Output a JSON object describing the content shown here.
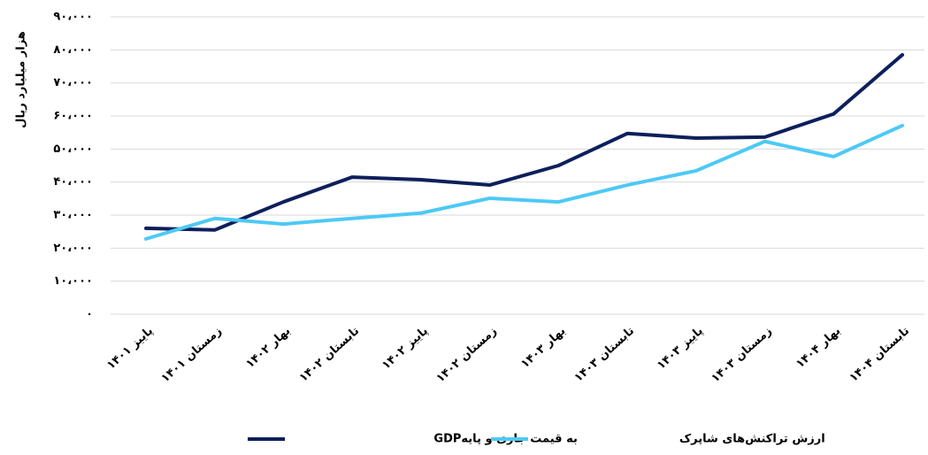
{
  "chart_data": {
    "type": "line",
    "y_label": "هزار میلیارد ریال",
    "categories": [
      "پاییز ۱۴۰۱",
      "زمستان ۱۴۰۱",
      "بهار ۱۴۰۲",
      "تابستان ۱۴۰۲",
      "پاییز ۱۴۰۲",
      "زمستان ۱۴۰۲",
      "بهار ۱۴۰۳",
      "تابستان ۱۴۰۳",
      "پاییز ۱۴۰۳",
      "زمستان ۱۴۰۳",
      "بهار ۱۴۰۴",
      "تابستان ۱۴۰۴"
    ],
    "series": [
      {
        "name": "GDPبه قیمت جاری و پایه",
        "color": "#0d1f5c",
        "values": [
          26000,
          25500,
          34000,
          41500,
          40700,
          39100,
          45000,
          54700,
          53300,
          53600,
          60600,
          78500
        ]
      },
      {
        "name": "ارزش تراکنش‌های شاپرک",
        "color": "#4dc9f6",
        "values": [
          22800,
          29000,
          27300,
          29000,
          30600,
          35100,
          34000,
          39100,
          43400,
          52300,
          47700,
          57100
        ]
      }
    ],
    "ylim": [
      0,
      90000
    ],
    "yticks": [
      {
        "value": 0,
        "label": "۰"
      },
      {
        "value": 10000,
        "label": "۱۰،۰۰۰"
      },
      {
        "value": 20000,
        "label": "۲۰،۰۰۰"
      },
      {
        "value": 30000,
        "label": "۳۰،۰۰۰"
      },
      {
        "value": 40000,
        "label": "۴۰،۰۰۰"
      },
      {
        "value": 50000,
        "label": "۵۰،۰۰۰"
      },
      {
        "value": 60000,
        "label": "۶۰،۰۰۰"
      },
      {
        "value": 70000,
        "label": "۷۰،۰۰۰"
      },
      {
        "value": 80000,
        "label": "۸۰،۰۰۰"
      },
      {
        "value": 90000,
        "label": "۹۰،۰۰۰"
      }
    ],
    "grid": true
  }
}
